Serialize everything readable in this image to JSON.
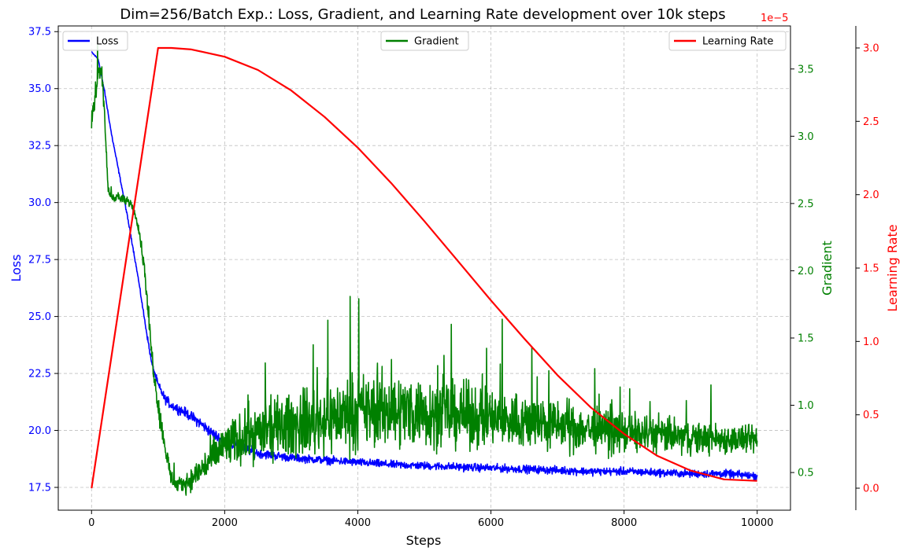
{
  "chart_data": {
    "type": "line",
    "title": "Dim=256/Batch Exp.: Loss, Gradient, and Learning Rate development over 10k steps",
    "xlabel": "Steps",
    "xlim": [
      -500,
      10500
    ],
    "xticks": [
      0,
      2000,
      4000,
      6000,
      8000,
      10000
    ],
    "grid": true,
    "axes": [
      {
        "id": "loss",
        "label": "Loss",
        "color": "#0000ff",
        "side": "left",
        "ylim": [
          16.5,
          37.75
        ],
        "ticks": [
          17.5,
          20.0,
          22.5,
          25.0,
          27.5,
          30.0,
          32.5,
          35.0,
          37.5
        ],
        "tick_labels": [
          "17.5",
          "20.0",
          "22.5",
          "25.0",
          "27.5",
          "30.0",
          "32.5",
          "35.0",
          "37.5"
        ]
      },
      {
        "id": "gradient",
        "label": "Gradient",
        "color": "#008000",
        "side": "right",
        "ylim": [
          0.22,
          3.82
        ],
        "ticks": [
          0.5,
          1.0,
          1.5,
          2.0,
          2.5,
          3.0,
          3.5
        ],
        "tick_labels": [
          "0.5",
          "1.0",
          "1.5",
          "2.0",
          "2.5",
          "3.0",
          "3.5"
        ]
      },
      {
        "id": "lr",
        "label": "Learning Rate",
        "color": "#ff0000",
        "side": "right-outer",
        "ylim": [
          -0.15,
          3.15
        ],
        "scale_label": "1e−5",
        "ticks": [
          0.0,
          0.5,
          1.0,
          1.5,
          2.0,
          2.5,
          3.0
        ],
        "tick_labels": [
          "0.0",
          "0.5",
          "1.0",
          "1.5",
          "2.0",
          "2.5",
          "3.0"
        ]
      }
    ],
    "series": [
      {
        "name": "Loss",
        "axis": "loss",
        "color": "#0000ff",
        "legend_position": "upper-left",
        "x": [
          0,
          100,
          200,
          300,
          400,
          500,
          600,
          700,
          800,
          900,
          1000,
          1100,
          1200,
          1400,
          1600,
          1800,
          2000,
          2500,
          3000,
          3500,
          4000,
          4500,
          5000,
          5500,
          6000,
          6500,
          7000,
          7500,
          8000,
          8500,
          9000,
          9500,
          10000
        ],
        "y": [
          36.6,
          36.3,
          34.8,
          33.0,
          31.5,
          30.0,
          28.4,
          26.7,
          24.8,
          23.0,
          22.0,
          21.4,
          21.1,
          20.8,
          20.4,
          19.9,
          19.5,
          19.0,
          18.8,
          18.7,
          18.6,
          18.5,
          18.45,
          18.4,
          18.35,
          18.3,
          18.25,
          18.2,
          18.2,
          18.15,
          18.1,
          18.1,
          18.0
        ],
        "noise": [
          0.05,
          0.05,
          0.1,
          0.1,
          0.1,
          0.1,
          0.1,
          0.1,
          0.15,
          0.2,
          0.25,
          0.3,
          0.3,
          0.3,
          0.35,
          0.35,
          0.35,
          0.3,
          0.25,
          0.25,
          0.25,
          0.25,
          0.25,
          0.25,
          0.25,
          0.25,
          0.25,
          0.25,
          0.25,
          0.25,
          0.25,
          0.25,
          0.25
        ]
      },
      {
        "name": "Gradient",
        "axis": "gradient",
        "color": "#008000",
        "legend_position": "upper-center",
        "x": [
          0,
          50,
          100,
          150,
          200,
          250,
          300,
          400,
          500,
          600,
          700,
          800,
          900,
          1000,
          1100,
          1200,
          1300,
          1400,
          1500,
          1600,
          1800,
          2000,
          2500,
          3000,
          3500,
          4000,
          4500,
          5000,
          5500,
          6000,
          6500,
          7000,
          7500,
          8000,
          8500,
          9000,
          9500,
          10000
        ],
        "y": [
          3.1,
          3.25,
          3.5,
          3.5,
          3.1,
          2.6,
          2.55,
          2.55,
          2.52,
          2.5,
          2.35,
          2.0,
          1.4,
          1.0,
          0.7,
          0.45,
          0.4,
          0.42,
          0.45,
          0.5,
          0.6,
          0.7,
          0.8,
          0.85,
          0.9,
          0.95,
          0.97,
          0.95,
          0.93,
          0.9,
          0.88,
          0.85,
          0.82,
          0.8,
          0.78,
          0.76,
          0.75,
          0.74
        ],
        "noise": [
          0.08,
          0.1,
          0.1,
          0.1,
          0.08,
          0.05,
          0.05,
          0.05,
          0.05,
          0.05,
          0.06,
          0.08,
          0.12,
          0.12,
          0.12,
          0.1,
          0.08,
          0.1,
          0.12,
          0.15,
          0.2,
          0.25,
          0.3,
          0.35,
          0.38,
          0.4,
          0.4,
          0.38,
          0.35,
          0.33,
          0.3,
          0.28,
          0.25,
          0.22,
          0.2,
          0.18,
          0.16,
          0.15
        ]
      },
      {
        "name": "Learning Rate",
        "axis": "lr",
        "color": "#ff0000",
        "legend_position": "upper-right",
        "x": [
          0,
          1000,
          1200,
          1500,
          2000,
          2500,
          3000,
          3500,
          4000,
          4500,
          5000,
          5500,
          6000,
          6500,
          7000,
          7500,
          8000,
          8500,
          9000,
          9500,
          10000
        ],
        "y": [
          0.0,
          3.0,
          3.0,
          2.99,
          2.94,
          2.85,
          2.71,
          2.53,
          2.32,
          2.08,
          1.82,
          1.55,
          1.28,
          1.02,
          0.77,
          0.55,
          0.37,
          0.22,
          0.12,
          0.06,
          0.05
        ]
      }
    ]
  }
}
